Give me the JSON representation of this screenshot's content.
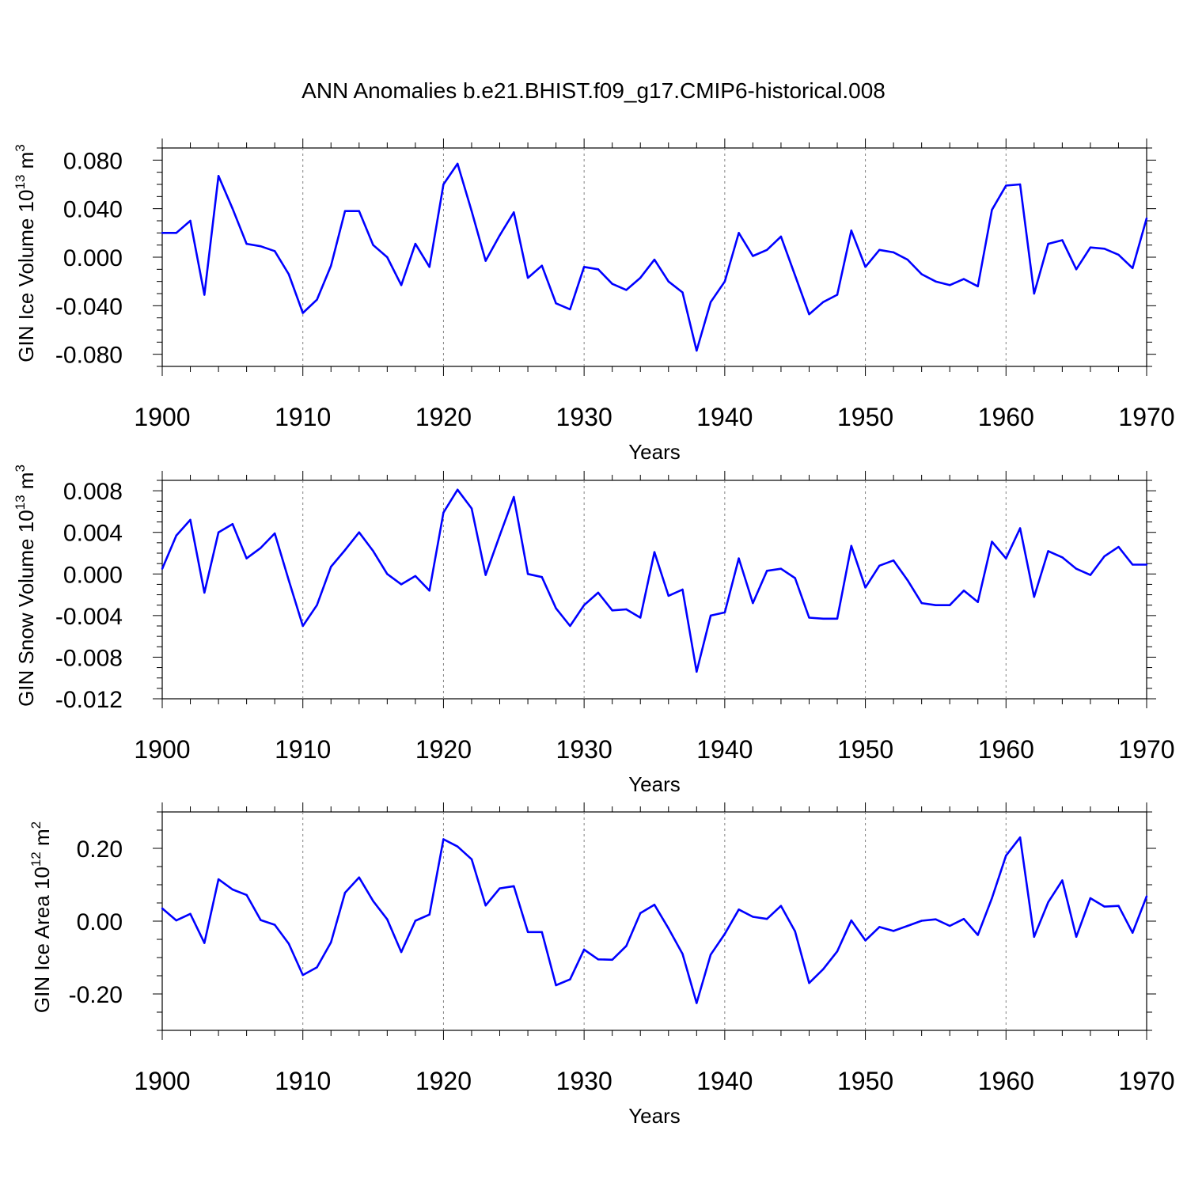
{
  "title": "ANN Anomalies b.e21.BHIST.f09_g17.CMIP6-historical.008",
  "line_color": "#0000ff",
  "chart_data": [
    {
      "type": "line",
      "name": "ice-volume",
      "ylabel": {
        "text": "GIN Ice Volume 10",
        "exp": "13",
        "unit": "m",
        "unit_exp": "3"
      },
      "xlabel": "Years",
      "xlim": [
        1900,
        1970
      ],
      "ylim": [
        -0.09,
        0.09
      ],
      "yticks": [
        -0.08,
        -0.04,
        0.0,
        0.04,
        0.08
      ],
      "ytick_labels": [
        "-0.080",
        "-0.040",
        "0.000",
        "0.040",
        "0.080"
      ],
      "yminor_step": 0.01,
      "xticks": [
        1900,
        1910,
        1920,
        1930,
        1940,
        1950,
        1960,
        1970
      ],
      "xtick_labels": [
        "1900",
        "1910",
        "1920",
        "1930",
        "1940",
        "1950",
        "1960",
        "1970"
      ],
      "grid_x": [
        1910,
        1920,
        1930,
        1940,
        1950,
        1960
      ],
      "x_start": 1900,
      "values": [
        0.02,
        0.02,
        0.03,
        -0.031,
        0.067,
        0.04,
        0.011,
        0.009,
        0.005,
        -0.014,
        -0.046,
        -0.035,
        -0.007,
        0.038,
        0.038,
        0.01,
        0.0,
        -0.023,
        0.011,
        -0.008,
        0.06,
        0.077,
        0.038,
        -0.003,
        0.018,
        0.037,
        -0.017,
        -0.007,
        -0.038,
        -0.043,
        -0.008,
        -0.01,
        -0.022,
        -0.027,
        -0.017,
        -0.002,
        -0.02,
        -0.029,
        -0.077,
        -0.037,
        -0.02,
        0.02,
        0.001,
        0.006,
        0.017,
        -0.015,
        -0.047,
        -0.037,
        -0.031,
        0.022,
        -0.008,
        0.006,
        0.004,
        -0.002,
        -0.014,
        -0.02,
        -0.023,
        -0.018,
        -0.024,
        0.039,
        0.059,
        0.06,
        -0.03,
        0.011,
        0.014,
        -0.01,
        0.008,
        0.007,
        0.002,
        -0.009,
        0.032
      ]
    },
    {
      "type": "line",
      "name": "snow-volume",
      "ylabel": {
        "text": "GIN Snow Volume 10",
        "exp": "13",
        "unit": "m",
        "unit_exp": "3"
      },
      "xlabel": "Years",
      "xlim": [
        1900,
        1970
      ],
      "ylim": [
        -0.012,
        0.009
      ],
      "yticks": [
        -0.012,
        -0.008,
        -0.004,
        0.0,
        0.004,
        0.008
      ],
      "ytick_labels": [
        "-0.012",
        "-0.008",
        "-0.004",
        "0.000",
        "0.004",
        "0.008"
      ],
      "yminor_step": 0.001,
      "xticks": [
        1900,
        1910,
        1920,
        1930,
        1940,
        1950,
        1960,
        1970
      ],
      "xtick_labels": [
        "1900",
        "1910",
        "1920",
        "1930",
        "1940",
        "1950",
        "1960",
        "1970"
      ],
      "grid_x": [
        1910,
        1920,
        1930,
        1940,
        1950,
        1960
      ],
      "x_start": 1900,
      "values": [
        0.0005,
        0.0037,
        0.0052,
        -0.0018,
        0.004,
        0.0048,
        0.0015,
        0.0025,
        0.0039,
        -0.0006,
        -0.005,
        -0.003,
        0.0007,
        0.0023,
        0.004,
        0.0022,
        0.0,
        -0.001,
        -0.0002,
        -0.0016,
        0.0059,
        0.0081,
        0.0063,
        -0.0001,
        0.0037,
        0.0074,
        0.0,
        -0.0003,
        -0.0033,
        -0.005,
        -0.003,
        -0.0018,
        -0.0035,
        -0.0034,
        -0.0042,
        0.0021,
        -0.0021,
        -0.0015,
        -0.0094,
        -0.004,
        -0.0037,
        0.0015,
        -0.0028,
        0.0003,
        0.0005,
        -0.0004,
        -0.0042,
        -0.0043,
        -0.0043,
        0.0027,
        -0.0013,
        0.0008,
        0.0013,
        -0.0006,
        -0.0028,
        -0.003,
        -0.003,
        -0.0016,
        -0.0027,
        0.0031,
        0.0015,
        0.0044,
        -0.0022,
        0.0022,
        0.0016,
        0.0005,
        -0.0001,
        0.0017,
        0.0026,
        0.0009,
        0.0009
      ]
    },
    {
      "type": "line",
      "name": "ice-area",
      "ylabel": {
        "text": "GIN Ice Area 10",
        "exp": "12",
        "unit": "m",
        "unit_exp": "2"
      },
      "xlabel": "Years",
      "xlim": [
        1900,
        1970
      ],
      "ylim": [
        -0.3,
        0.3
      ],
      "yticks": [
        -0.2,
        0.0,
        0.2
      ],
      "ytick_labels": [
        "-0.20",
        "0.00",
        "0.20"
      ],
      "yminor_step": 0.05,
      "xticks": [
        1900,
        1910,
        1920,
        1930,
        1940,
        1950,
        1960,
        1970
      ],
      "xtick_labels": [
        "1900",
        "1910",
        "1920",
        "1930",
        "1940",
        "1950",
        "1960",
        "1970"
      ],
      "grid_x": [
        1910,
        1920,
        1930,
        1940,
        1950,
        1960
      ],
      "x_start": 1900,
      "values": [
        0.035,
        0.002,
        0.02,
        -0.06,
        0.115,
        0.087,
        0.072,
        0.003,
        -0.01,
        -0.062,
        -0.148,
        -0.127,
        -0.058,
        0.078,
        0.12,
        0.055,
        0.005,
        -0.085,
        0.001,
        0.018,
        0.225,
        0.205,
        0.17,
        0.043,
        0.09,
        0.096,
        -0.03,
        -0.03,
        -0.176,
        -0.16,
        -0.078,
        -0.105,
        -0.106,
        -0.068,
        0.022,
        0.045,
        -0.02,
        -0.09,
        -0.225,
        -0.092,
        -0.035,
        0.032,
        0.012,
        0.006,
        0.042,
        -0.028,
        -0.17,
        -0.132,
        -0.083,
        0.002,
        -0.053,
        -0.016,
        -0.027,
        -0.013,
        0.001,
        0.005,
        -0.013,
        0.006,
        -0.038,
        0.063,
        0.18,
        0.23,
        -0.043,
        0.052,
        0.112,
        -0.043,
        0.063,
        0.04,
        0.042,
        -0.032,
        0.068
      ]
    }
  ]
}
